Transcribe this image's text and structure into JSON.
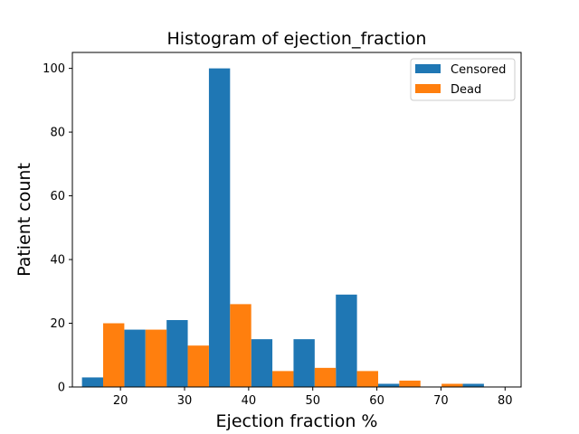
{
  "chart_data": {
    "type": "bar",
    "title": "Histogram of ejection_fraction",
    "xlabel": "Ejection fraction %",
    "ylabel": "Patient count",
    "xlim": [
      12.5,
      82.5
    ],
    "ylim": [
      0,
      105
    ],
    "x_ticks": [
      20,
      30,
      40,
      50,
      60,
      70,
      80
    ],
    "y_ticks": [
      0,
      20,
      40,
      60,
      80,
      100
    ],
    "grid": false,
    "legend_position": "top-right",
    "bin_edges": [
      14.0,
      20.6,
      27.2,
      33.8,
      40.4,
      47.0,
      53.6,
      60.2,
      66.8,
      73.4,
      80.0
    ],
    "series": [
      {
        "name": "Censored",
        "color": "#1f77b4",
        "values": [
          3,
          18,
          21,
          100,
          15,
          15,
          29,
          1,
          0,
          1
        ]
      },
      {
        "name": "Dead",
        "color": "#ff7f0e",
        "values": [
          20,
          18,
          13,
          26,
          5,
          6,
          5,
          2,
          1,
          0
        ]
      }
    ]
  }
}
